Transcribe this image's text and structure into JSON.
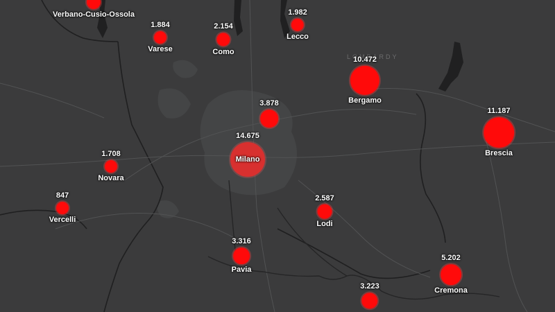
{
  "map": {
    "region_label": "LOMBARDY",
    "marker_color": "#ff0a0a",
    "background_color": "#3b3b3c"
  },
  "markers": [
    {
      "name": "Verbano-Cusio-Ossola",
      "count": "",
      "value": null
    },
    {
      "name": "Varese",
      "count": "1.884",
      "value": 1884
    },
    {
      "name": "Como",
      "count": "2.154",
      "value": 2154
    },
    {
      "name": "Lecco",
      "count": "1.982",
      "value": 1982
    },
    {
      "name": "Bergamo",
      "count": "10.472",
      "value": 10472
    },
    {
      "name": "",
      "count": "3.878",
      "value": 3878
    },
    {
      "name": "Brescia",
      "count": "11.187",
      "value": 11187
    },
    {
      "name": "Milano",
      "count": "14.675",
      "value": 14675
    },
    {
      "name": "Novara",
      "count": "1.708",
      "value": 1708
    },
    {
      "name": "Vercelli",
      "count": "847",
      "value": 847
    },
    {
      "name": "Lodi",
      "count": "2.587",
      "value": 2587
    },
    {
      "name": "Pavia",
      "count": "3.316",
      "value": 3316
    },
    {
      "name": "Cremona",
      "count": "5.202",
      "value": 5202
    },
    {
      "name": "",
      "count": "3.223",
      "value": 3223
    }
  ]
}
